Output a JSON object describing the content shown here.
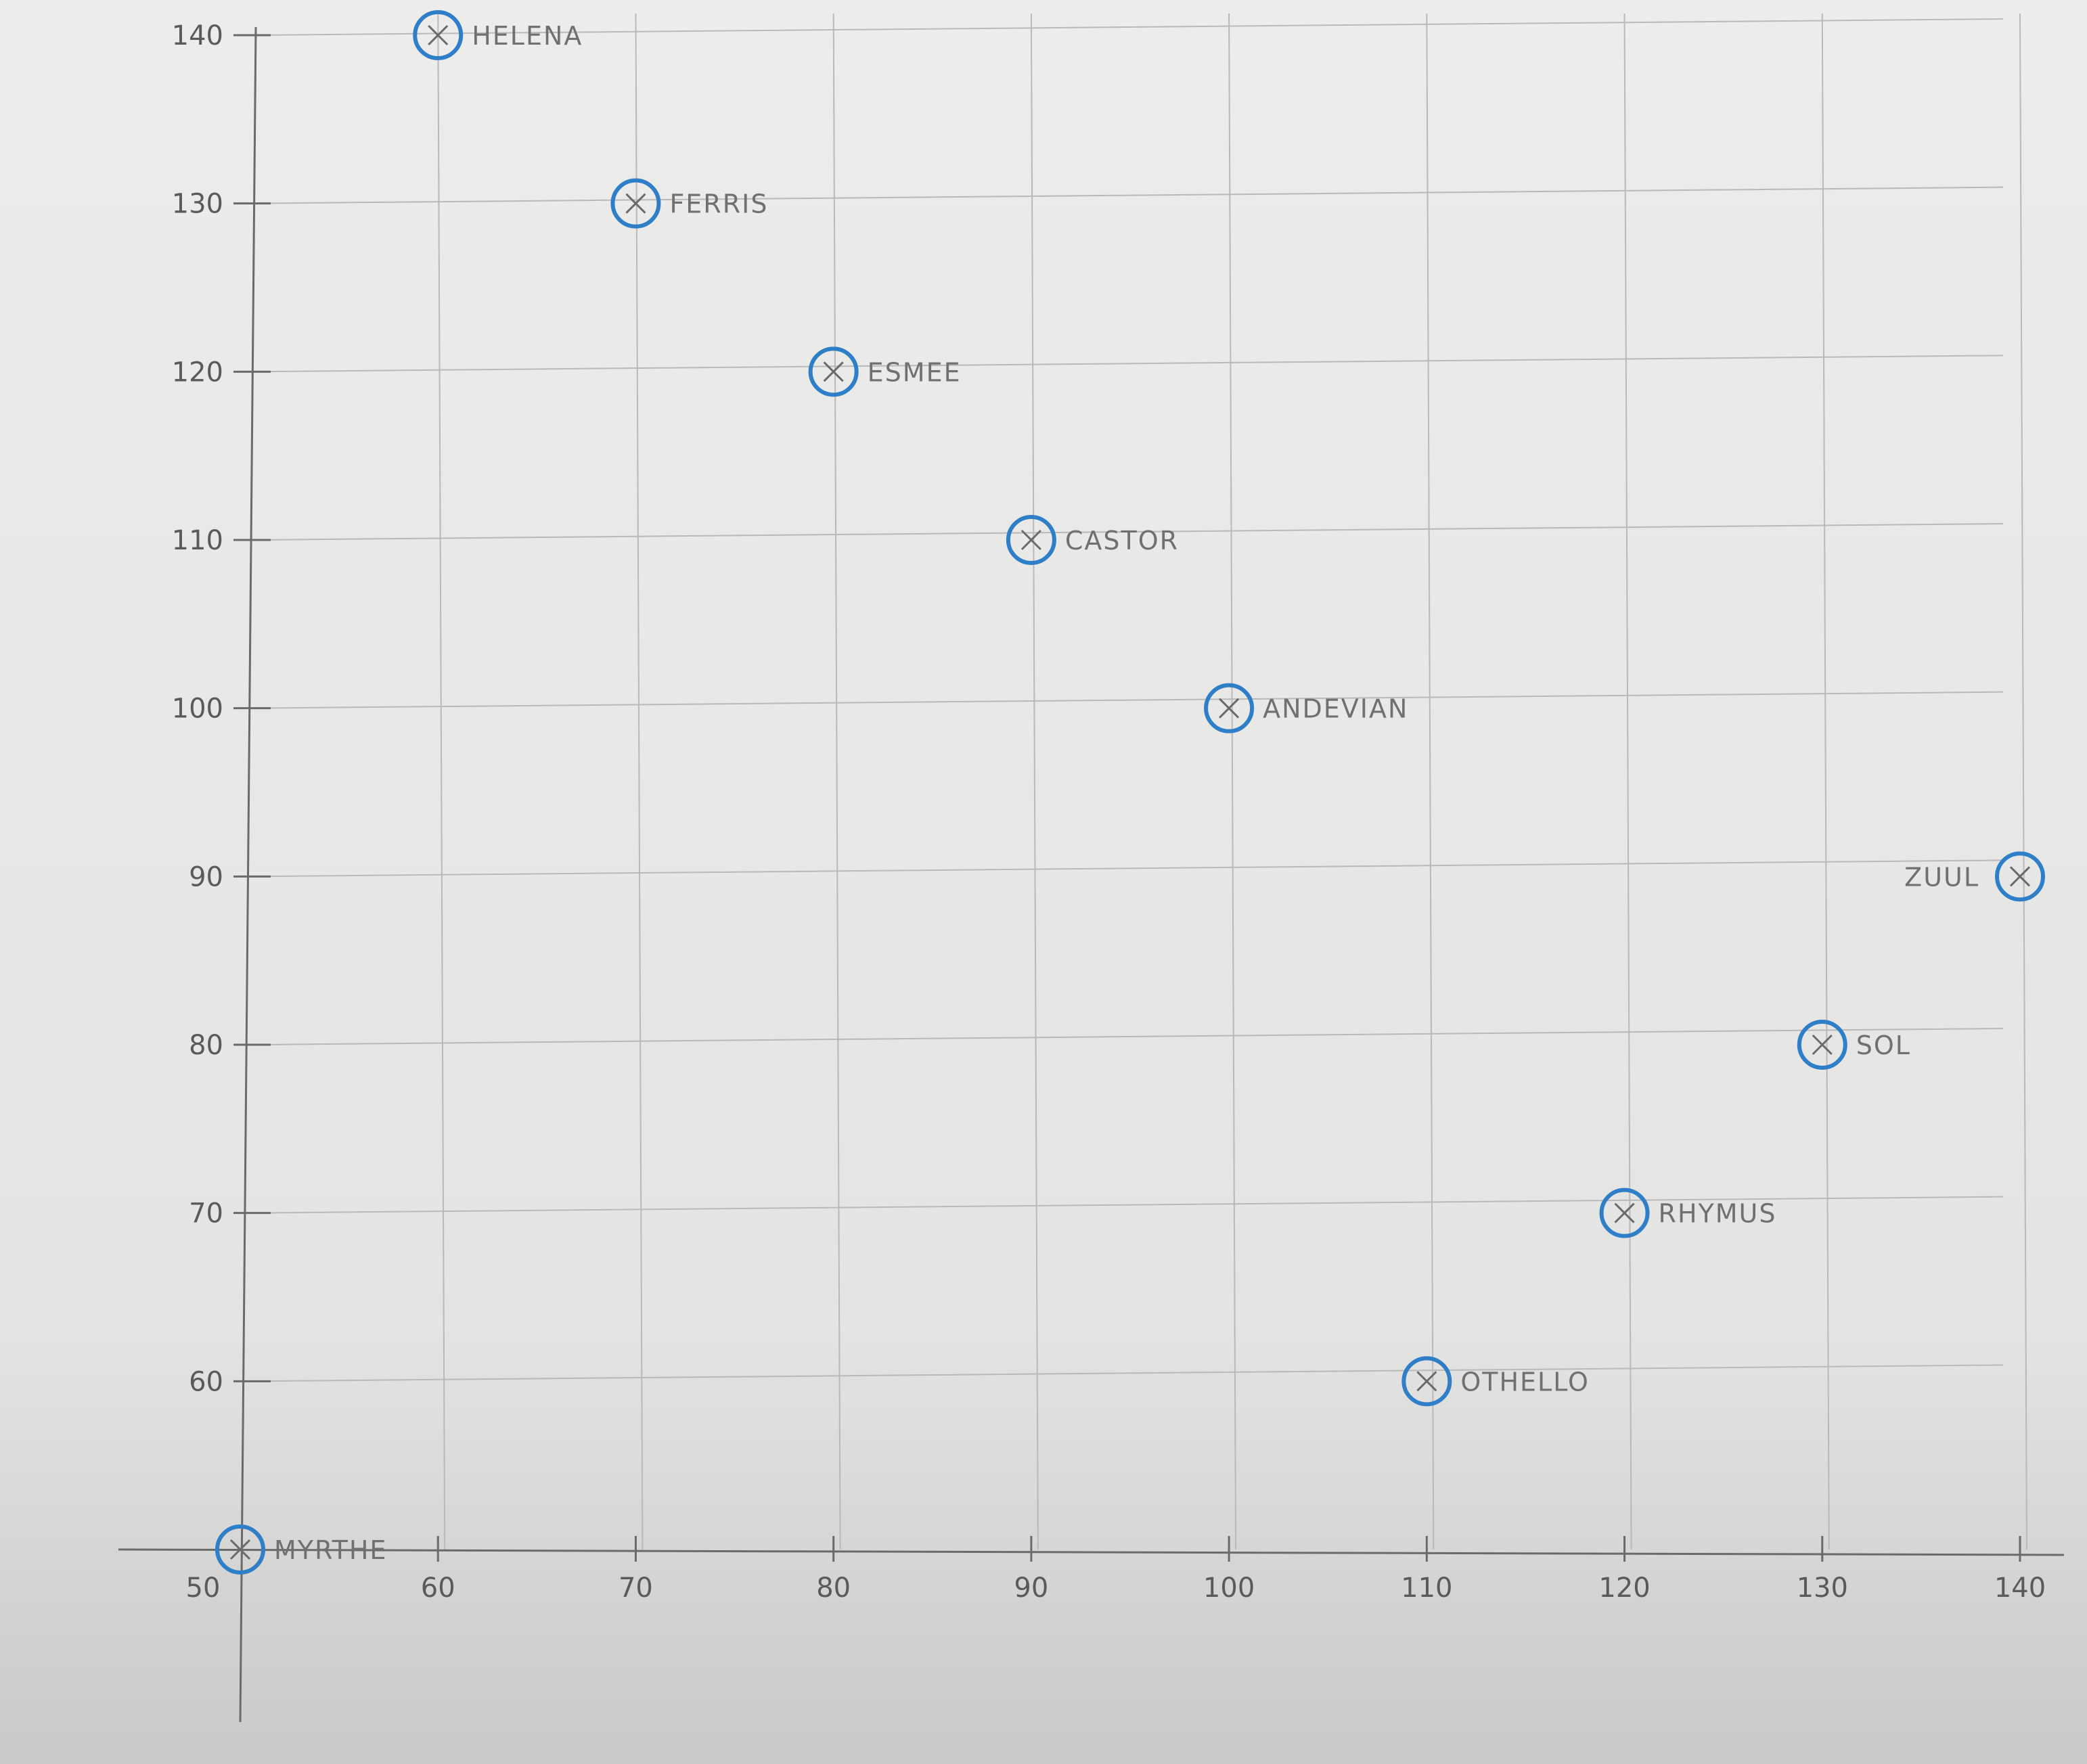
{
  "chart_data": {
    "type": "scatter",
    "title": "",
    "xlabel": "",
    "ylabel": "",
    "xlim": [
      50,
      140
    ],
    "ylim": [
      50,
      140
    ],
    "grid": true,
    "x_ticks": [
      "50",
      "60",
      "70",
      "80",
      "90",
      "100",
      "110",
      "120",
      "130",
      "140"
    ],
    "y_ticks": [
      "60",
      "70",
      "80",
      "90",
      "100",
      "110",
      "120",
      "130",
      "140"
    ],
    "points": [
      {
        "label": "MYRTHE",
        "x": 50,
        "y": 50
      },
      {
        "label": "HELENA",
        "x": 60,
        "y": 140
      },
      {
        "label": "FERRIS",
        "x": 70,
        "y": 130
      },
      {
        "label": "ESMEE",
        "x": 80,
        "y": 120
      },
      {
        "label": "CASTOR",
        "x": 90,
        "y": 110
      },
      {
        "label": "ANDEVIAN",
        "x": 100,
        "y": 100
      },
      {
        "label": "ZUUL",
        "x": 140,
        "y": 90
      },
      {
        "label": "SOL",
        "x": 130,
        "y": 80
      },
      {
        "label": "RHYMUS",
        "x": 120,
        "y": 70
      },
      {
        "label": "OTHELLO",
        "x": 110,
        "y": 60
      }
    ]
  },
  "colors": {
    "paper": "#e9e9e7",
    "grid": "#b9b9b9",
    "axis": "#6a6a6a",
    "circle": "#2f7fc8",
    "cross": "#6a6a6a",
    "label": "#707070"
  }
}
